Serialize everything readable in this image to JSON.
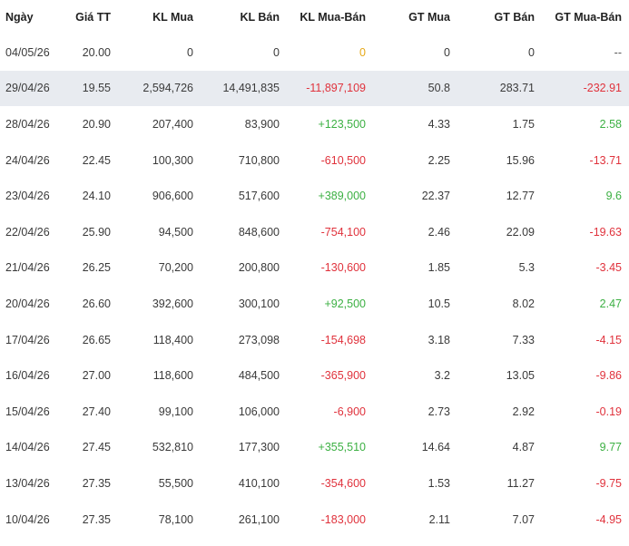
{
  "headers": [
    "Ngày",
    "Giá TT",
    "KL Mua",
    "KL Bán",
    "KL Mua-Bán",
    "GT Mua",
    "GT Bán",
    "GT Mua-Bán"
  ],
  "colors": {
    "negative": "#e0323c",
    "positive": "#3cb043",
    "zero": "#e6a817",
    "highlight_row": "#e8ebf0"
  },
  "highlighted_row_index": 1,
  "rows": [
    {
      "date": "04/05/26",
      "price": "20.00",
      "buy_vol": "0",
      "sell_vol": "0",
      "net_vol": "0",
      "net_vol_sign": "zero",
      "buy_val": "0",
      "sell_val": "0",
      "net_val": "--",
      "net_val_sign": "neutral"
    },
    {
      "date": "29/04/26",
      "price": "19.55",
      "buy_vol": "2,594,726",
      "sell_vol": "14,491,835",
      "net_vol": "-11,897,109",
      "net_vol_sign": "neg",
      "buy_val": "50.8",
      "sell_val": "283.71",
      "net_val": "-232.91",
      "net_val_sign": "neg"
    },
    {
      "date": "28/04/26",
      "price": "20.90",
      "buy_vol": "207,400",
      "sell_vol": "83,900",
      "net_vol": "+123,500",
      "net_vol_sign": "pos",
      "buy_val": "4.33",
      "sell_val": "1.75",
      "net_val": "2.58",
      "net_val_sign": "pos"
    },
    {
      "date": "24/04/26",
      "price": "22.45",
      "buy_vol": "100,300",
      "sell_vol": "710,800",
      "net_vol": "-610,500",
      "net_vol_sign": "neg",
      "buy_val": "2.25",
      "sell_val": "15.96",
      "net_val": "-13.71",
      "net_val_sign": "neg"
    },
    {
      "date": "23/04/26",
      "price": "24.10",
      "buy_vol": "906,600",
      "sell_vol": "517,600",
      "net_vol": "+389,000",
      "net_vol_sign": "pos",
      "buy_val": "22.37",
      "sell_val": "12.77",
      "net_val": "9.6",
      "net_val_sign": "pos"
    },
    {
      "date": "22/04/26",
      "price": "25.90",
      "buy_vol": "94,500",
      "sell_vol": "848,600",
      "net_vol": "-754,100",
      "net_vol_sign": "neg",
      "buy_val": "2.46",
      "sell_val": "22.09",
      "net_val": "-19.63",
      "net_val_sign": "neg"
    },
    {
      "date": "21/04/26",
      "price": "26.25",
      "buy_vol": "70,200",
      "sell_vol": "200,800",
      "net_vol": "-130,600",
      "net_vol_sign": "neg",
      "buy_val": "1.85",
      "sell_val": "5.3",
      "net_val": "-3.45",
      "net_val_sign": "neg"
    },
    {
      "date": "20/04/26",
      "price": "26.60",
      "buy_vol": "392,600",
      "sell_vol": "300,100",
      "net_vol": "+92,500",
      "net_vol_sign": "pos",
      "buy_val": "10.5",
      "sell_val": "8.02",
      "net_val": "2.47",
      "net_val_sign": "pos"
    },
    {
      "date": "17/04/26",
      "price": "26.65",
      "buy_vol": "118,400",
      "sell_vol": "273,098",
      "net_vol": "-154,698",
      "net_vol_sign": "neg",
      "buy_val": "3.18",
      "sell_val": "7.33",
      "net_val": "-4.15",
      "net_val_sign": "neg"
    },
    {
      "date": "16/04/26",
      "price": "27.00",
      "buy_vol": "118,600",
      "sell_vol": "484,500",
      "net_vol": "-365,900",
      "net_vol_sign": "neg",
      "buy_val": "3.2",
      "sell_val": "13.05",
      "net_val": "-9.86",
      "net_val_sign": "neg"
    },
    {
      "date": "15/04/26",
      "price": "27.40",
      "buy_vol": "99,100",
      "sell_vol": "106,000",
      "net_vol": "-6,900",
      "net_vol_sign": "neg",
      "buy_val": "2.73",
      "sell_val": "2.92",
      "net_val": "-0.19",
      "net_val_sign": "neg"
    },
    {
      "date": "14/04/26",
      "price": "27.45",
      "buy_vol": "532,810",
      "sell_vol": "177,300",
      "net_vol": "+355,510",
      "net_vol_sign": "pos",
      "buy_val": "14.64",
      "sell_val": "4.87",
      "net_val": "9.77",
      "net_val_sign": "pos"
    },
    {
      "date": "13/04/26",
      "price": "27.35",
      "buy_vol": "55,500",
      "sell_vol": "410,100",
      "net_vol": "-354,600",
      "net_vol_sign": "neg",
      "buy_val": "1.53",
      "sell_val": "11.27",
      "net_val": "-9.75",
      "net_val_sign": "neg"
    },
    {
      "date": "10/04/26",
      "price": "27.35",
      "buy_vol": "78,100",
      "sell_vol": "261,100",
      "net_vol": "-183,000",
      "net_vol_sign": "neg",
      "buy_val": "2.11",
      "sell_val": "7.07",
      "net_val": "-4.95",
      "net_val_sign": "neg"
    }
  ]
}
